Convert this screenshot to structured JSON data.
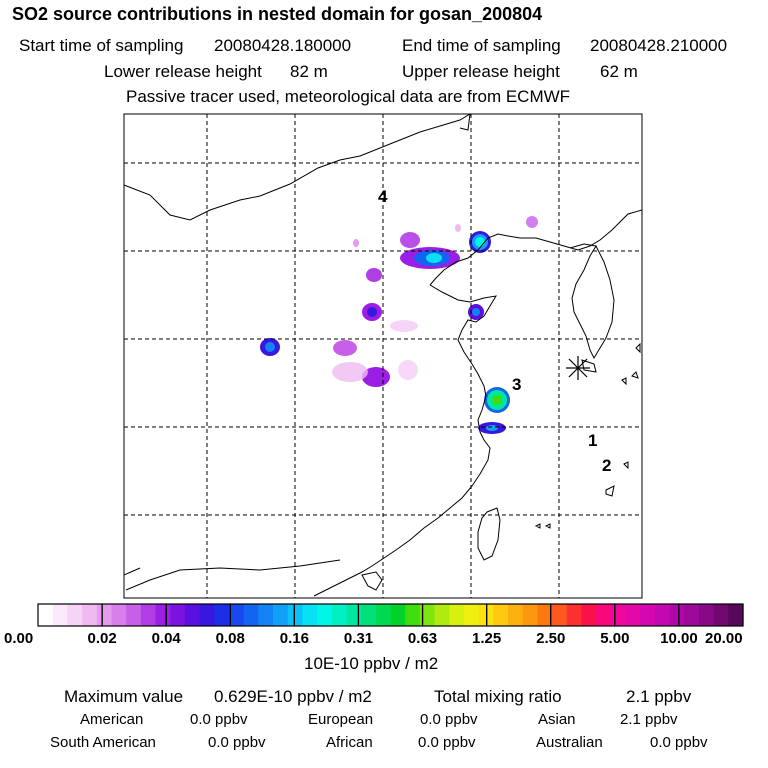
{
  "header": {
    "title": "SO2 source contributions in nested domain for gosan_200804",
    "start_label": "Start time of sampling",
    "start_value": "20080428.180000",
    "end_label": "End time of sampling",
    "end_value": "20080428.210000",
    "lower_label": "Lower release height",
    "lower_value": "82 m",
    "upper_label": "Upper release height",
    "upper_value": "62 m",
    "note": "Passive tracer used, meteorological data are from ECMWF"
  },
  "map": {
    "labels": [
      "4",
      "3",
      "1",
      "2"
    ],
    "station_marker": "station-asterisk-icon"
  },
  "colorbar": {
    "ticks": [
      "0.00",
      "0.02",
      "0.04",
      "0.08",
      "0.16",
      "0.31",
      "0.63",
      "1.25",
      "2.50",
      "5.00",
      "10.00",
      "20.00"
    ],
    "unit": "10E-10 ppbv / m2",
    "colors": [
      "#ffffff",
      "#fbe9fb",
      "#f6d4f7",
      "#efbaf2",
      "#e59cef",
      "#d97fec",
      "#c85fe8",
      "#b13ee5",
      "#9a1ee3",
      "#7d12e0",
      "#5a10e0",
      "#3818e0",
      "#1f2ee6",
      "#1848ee",
      "#1464f2",
      "#1282f5",
      "#10a0f7",
      "#0cc0f8",
      "#08e0f6",
      "#00f6e6",
      "#00f0c4",
      "#00e8a0",
      "#00e07a",
      "#00da52",
      "#00d22a",
      "#40dc10",
      "#80e410",
      "#b0ea10",
      "#d8f010",
      "#f0f010",
      "#fce010",
      "#fcc810",
      "#fcb010",
      "#fc9810",
      "#fc7810",
      "#fc5820",
      "#fc3030",
      "#fc1048",
      "#f8087c",
      "#f0089c",
      "#e408a8",
      "#d408b0",
      "#c408b0",
      "#b008a8",
      "#9c0898",
      "#880888",
      "#700870",
      "#580858"
    ]
  },
  "stats": {
    "max_label": "Maximum value",
    "max_value": "0.629E-10 ppbv / m2",
    "total_label": "Total mixing ratio",
    "total_value": "2.1 ppbv",
    "sources": [
      {
        "name": "American",
        "value": "0.0 ppbv"
      },
      {
        "name": "European",
        "value": "0.0 ppbv"
      },
      {
        "name": "Asian",
        "value": "2.1 ppbv"
      },
      {
        "name": "South American",
        "value": "0.0 ppbv"
      },
      {
        "name": "African",
        "value": "0.0 ppbv"
      },
      {
        "name": "Australian",
        "value": "0.0 ppbv"
      }
    ]
  }
}
